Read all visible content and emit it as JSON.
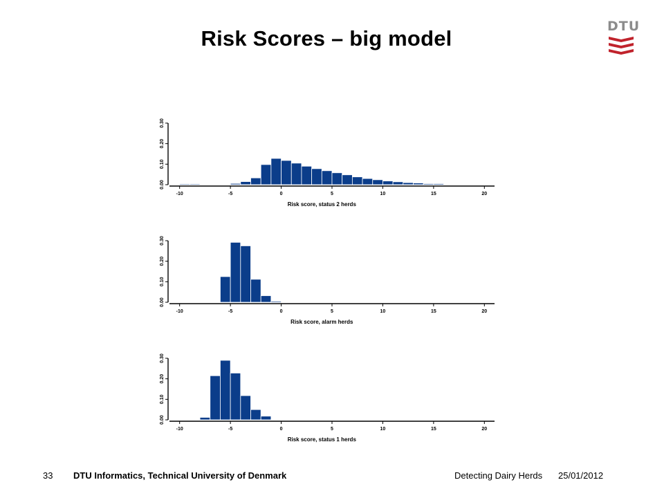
{
  "slide": {
    "title": "Risk Scores – big model",
    "page_number": "33",
    "institution": "DTU Informatics, Technical University of Denmark",
    "talk_title": "Detecting Dairy Herds",
    "date": "25/01/2012"
  },
  "logo": {
    "text": "DTU",
    "text_color": "#8c8c8c",
    "mark_color": "#c0232c",
    "icon": "dtu-logo-icon"
  },
  "colors": {
    "bar_fill": "#0b3d8a",
    "bar_edge": "#ffffff",
    "axis": "#000000"
  },
  "chart_data": [
    {
      "type": "bar",
      "xlabel": "Risk score, status 2 herds",
      "ylabel": "",
      "xlim": [
        -11,
        21
      ],
      "ylim": [
        0,
        0.3
      ],
      "xticks": [
        "-10",
        "-5",
        "0",
        "5",
        "10",
        "15",
        "20"
      ],
      "yticks": [
        "0.00",
        "0.10",
        "0.20",
        "0.30"
      ],
      "bin_width": 1,
      "bins": [
        {
          "x0": -10,
          "value": 0.004
        },
        {
          "x0": -9,
          "value": 0.004
        },
        {
          "x0": -5,
          "value": 0.006
        },
        {
          "x0": -4,
          "value": 0.015
        },
        {
          "x0": -3,
          "value": 0.033
        },
        {
          "x0": -2,
          "value": 0.098
        },
        {
          "x0": -1,
          "value": 0.128
        },
        {
          "x0": 0,
          "value": 0.118
        },
        {
          "x0": 1,
          "value": 0.105
        },
        {
          "x0": 2,
          "value": 0.09
        },
        {
          "x0": 3,
          "value": 0.078
        },
        {
          "x0": 4,
          "value": 0.068
        },
        {
          "x0": 5,
          "value": 0.058
        },
        {
          "x0": 6,
          "value": 0.048
        },
        {
          "x0": 7,
          "value": 0.038
        },
        {
          "x0": 8,
          "value": 0.03
        },
        {
          "x0": 9,
          "value": 0.024
        },
        {
          "x0": 10,
          "value": 0.018
        },
        {
          "x0": 11,
          "value": 0.014
        },
        {
          "x0": 12,
          "value": 0.01
        },
        {
          "x0": 13,
          "value": 0.008
        },
        {
          "x0": 14,
          "value": 0.005
        },
        {
          "x0": 15,
          "value": 0.005
        }
      ]
    },
    {
      "type": "bar",
      "xlabel": "Risk score, alarm herds",
      "ylabel": "",
      "xlim": [
        -11,
        21
      ],
      "ylim": [
        0,
        0.3
      ],
      "xticks": [
        "-10",
        "-5",
        "0",
        "5",
        "10",
        "15",
        "20"
      ],
      "yticks": [
        "0.00",
        "0.10",
        "0.20",
        "0.30"
      ],
      "bin_width": 1,
      "bins": [
        {
          "x0": -6,
          "value": 0.125
        },
        {
          "x0": -5,
          "value": 0.292
        },
        {
          "x0": -4,
          "value": 0.275
        },
        {
          "x0": -3,
          "value": 0.112
        },
        {
          "x0": -2,
          "value": 0.032
        },
        {
          "x0": -1,
          "value": 0.005
        }
      ]
    },
    {
      "type": "bar",
      "xlabel": "Risk score, status 1 herds",
      "ylabel": "",
      "xlim": [
        -11,
        21
      ],
      "ylim": [
        0,
        0.3
      ],
      "xticks": [
        "-10",
        "-5",
        "0",
        "5",
        "10",
        "15",
        "20"
      ],
      "yticks": [
        "0.00",
        "0.10",
        "0.20",
        "0.30"
      ],
      "bin_width": 1,
      "bins": [
        {
          "x0": -8,
          "value": 0.012
        },
        {
          "x0": -7,
          "value": 0.215
        },
        {
          "x0": -6,
          "value": 0.29
        },
        {
          "x0": -5,
          "value": 0.228
        },
        {
          "x0": -4,
          "value": 0.118
        },
        {
          "x0": -3,
          "value": 0.05
        },
        {
          "x0": -2,
          "value": 0.018
        }
      ]
    }
  ]
}
